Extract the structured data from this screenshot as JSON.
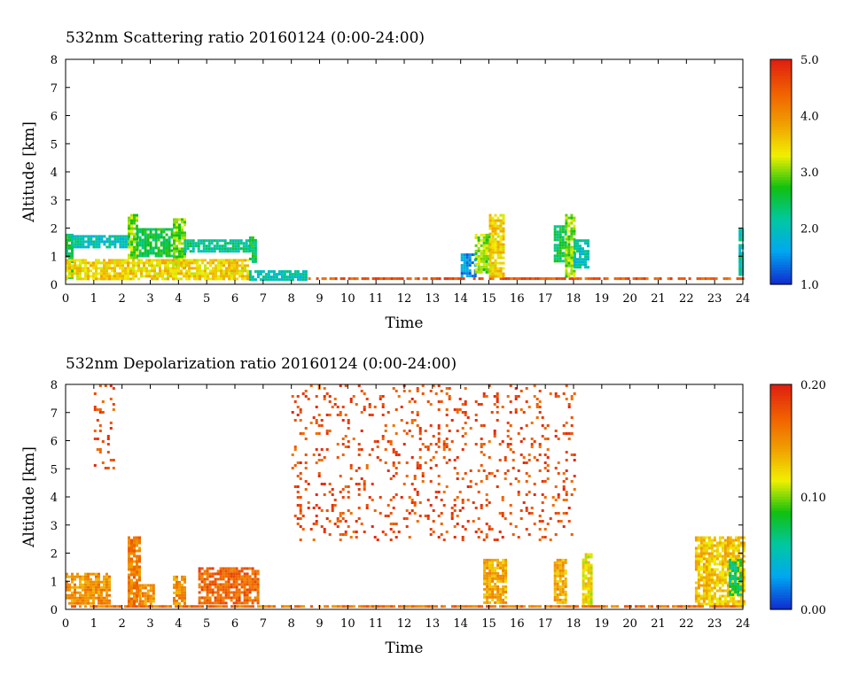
{
  "panels": [
    {
      "title": "532nm Scattering ratio  20160124 (0:00-24:00)",
      "xlabel": "Time",
      "ylabel": "Altitude [km]",
      "x_ticks": [
        "0",
        "1",
        "2",
        "3",
        "4",
        "5",
        "6",
        "7",
        "8",
        "9",
        "10",
        "11",
        "12",
        "13",
        "14",
        "15",
        "16",
        "17",
        "18",
        "19",
        "20",
        "21",
        "22",
        "23",
        "24"
      ],
      "y_ticks": [
        "0",
        "1",
        "2",
        "3",
        "4",
        "5",
        "6",
        "7",
        "8"
      ],
      "colorbar_labels": [
        "5.0",
        "4.0",
        "3.0",
        "2.0",
        "1.0"
      ]
    },
    {
      "title": "532nm Depolarization ratio  20160124 (0:00-24:00)",
      "xlabel": "Time",
      "ylabel": "Altitude [km]",
      "x_ticks": [
        "0",
        "1",
        "2",
        "3",
        "4",
        "5",
        "6",
        "7",
        "8",
        "9",
        "10",
        "11",
        "12",
        "13",
        "14",
        "15",
        "16",
        "17",
        "18",
        "19",
        "20",
        "21",
        "22",
        "23",
        "24"
      ],
      "y_ticks": [
        "0",
        "1",
        "2",
        "3",
        "4",
        "5",
        "6",
        "7",
        "8"
      ],
      "colorbar_labels": [
        "0.20",
        "0.10",
        "0.00"
      ]
    }
  ],
  "chart_data": [
    {
      "type": "heatmap",
      "title": "532nm Scattering ratio  20160124 (0:00-24:00)",
      "xlabel": "Time",
      "ylabel": "Altitude [km]",
      "xlim": [
        0,
        24
      ],
      "ylim": [
        0,
        8
      ],
      "colorbar_range": [
        1.0,
        5.0
      ],
      "colormap": [
        "#1030d0",
        "#00a8f0",
        "#00c8a0",
        "#10c010",
        "#f0f000",
        "#f0a000",
        "#f06000",
        "#e02010"
      ],
      "features": [
        {
          "t0": 0.0,
          "t1": 0.2,
          "z0": 0.2,
          "z1": 1.8,
          "value": 2.5
        },
        {
          "t0": 0.2,
          "t1": 2.2,
          "z0": 1.3,
          "z1": 1.75,
          "value": 2.0
        },
        {
          "t0": 2.2,
          "t1": 2.5,
          "z0": 0.9,
          "z1": 2.5,
          "value": 3.0
        },
        {
          "t0": 2.5,
          "t1": 3.8,
          "z0": 1.0,
          "z1": 2.0,
          "value": 2.5
        },
        {
          "t0": 3.8,
          "t1": 4.2,
          "z0": 0.6,
          "z1": 2.35,
          "value": 3.0
        },
        {
          "t0": 4.2,
          "t1": 6.5,
          "z0": 1.2,
          "z1": 1.6,
          "value": 2.2
        },
        {
          "t0": 6.5,
          "t1": 6.7,
          "z0": 0.8,
          "z1": 1.8,
          "value": 2.5
        },
        {
          "t0": 0.0,
          "t1": 6.5,
          "z0": 0.2,
          "z1": 0.9,
          "value": 3.5
        },
        {
          "t0": 6.5,
          "t1": 8.5,
          "z0": 0.2,
          "z1": 0.5,
          "value": 2.0
        },
        {
          "t0": 8.5,
          "t1": 24.0,
          "z0": 0.2,
          "z1": 0.25,
          "value": 4.5
        },
        {
          "t0": 14.0,
          "t1": 14.5,
          "z0": 0.3,
          "z1": 1.1,
          "value": 1.5
        },
        {
          "t0": 14.5,
          "t1": 15.0,
          "z0": 0.4,
          "z1": 1.8,
          "value": 3.0
        },
        {
          "t0": 15.0,
          "t1": 15.5,
          "z0": 0.3,
          "z1": 2.5,
          "value": 3.5
        },
        {
          "t0": 17.3,
          "t1": 17.7,
          "z0": 0.8,
          "z1": 2.1,
          "value": 2.5
        },
        {
          "t0": 17.7,
          "t1": 18.0,
          "z0": 0.3,
          "z1": 2.5,
          "value": 3.0
        },
        {
          "t0": 18.0,
          "t1": 18.5,
          "z0": 0.6,
          "z1": 1.6,
          "value": 2.0
        },
        {
          "t0": 23.85,
          "t1": 24.0,
          "z0": 0.3,
          "z1": 2.0,
          "value": 2.0
        }
      ]
    },
    {
      "type": "heatmap",
      "title": "532nm Depolarization ratio  20160124 (0:00-24:00)",
      "xlabel": "Time",
      "ylabel": "Altitude [km]",
      "xlim": [
        0,
        24
      ],
      "ylim": [
        0,
        8
      ],
      "colorbar_range": [
        0.0,
        0.2
      ],
      "colormap": [
        "#1030d0",
        "#00a8f0",
        "#00c8a0",
        "#10c010",
        "#f0f000",
        "#f0a000",
        "#f06000",
        "#e02010"
      ],
      "features": [
        {
          "t0": 0.0,
          "t1": 1.6,
          "z0": 0.2,
          "z1": 1.3,
          "value": 0.15
        },
        {
          "t0": 1.0,
          "t1": 1.7,
          "z0": 5.0,
          "z1": 8.0,
          "value": 0.18
        },
        {
          "t0": 2.2,
          "t1": 2.6,
          "z0": 0.2,
          "z1": 2.6,
          "value": 0.16
        },
        {
          "t0": 2.6,
          "t1": 3.1,
          "z0": 0.2,
          "z1": 0.9,
          "value": 0.15
        },
        {
          "t0": 3.8,
          "t1": 4.2,
          "z0": 0.2,
          "z1": 1.2,
          "value": 0.15
        },
        {
          "t0": 4.7,
          "t1": 6.8,
          "z0": 0.2,
          "z1": 1.5,
          "value": 0.17
        },
        {
          "t0": 8.0,
          "t1": 18.0,
          "z0": 2.5,
          "z1": 8.0,
          "value": 0.18
        },
        {
          "t0": 14.8,
          "t1": 15.6,
          "z0": 0.2,
          "z1": 1.8,
          "value": 0.14
        },
        {
          "t0": 17.3,
          "t1": 17.7,
          "z0": 0.2,
          "z1": 1.8,
          "value": 0.14
        },
        {
          "t0": 18.3,
          "t1": 18.6,
          "z0": 0.2,
          "z1": 2.0,
          "value": 0.12
        },
        {
          "t0": 22.3,
          "t1": 24.0,
          "z0": 0.2,
          "z1": 2.6,
          "value": 0.13
        },
        {
          "t0": 23.5,
          "t1": 23.9,
          "z0": 0.5,
          "z1": 1.8,
          "value": 0.07
        },
        {
          "t0": 0.0,
          "t1": 24.0,
          "z0": 0.1,
          "z1": 0.15,
          "value": 0.16
        }
      ]
    }
  ]
}
